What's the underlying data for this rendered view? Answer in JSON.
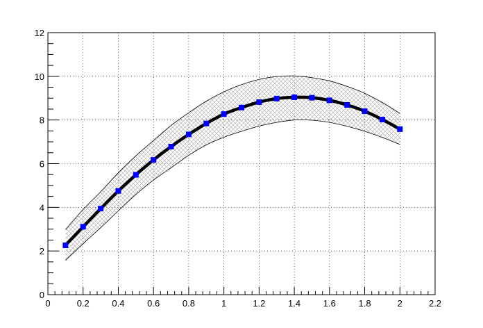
{
  "chart_data": {
    "type": "line",
    "title": "",
    "xlabel": "",
    "ylabel": "",
    "xlim": [
      0,
      2.2
    ],
    "ylim": [
      0,
      12
    ],
    "x_ticks": [
      0,
      0.2,
      0.4,
      0.6,
      0.8,
      1,
      1.2,
      1.4,
      1.6,
      1.8,
      2,
      2.2
    ],
    "x_tick_labels": [
      "0",
      "0.2",
      "0.4",
      "0.6",
      "0.8",
      "1",
      "1.2",
      "1.4",
      "1.6",
      "1.8",
      "2",
      "2.2"
    ],
    "y_ticks": [
      0,
      2,
      4,
      6,
      8,
      10,
      12
    ],
    "y_tick_labels": [
      "0",
      "2",
      "4",
      "6",
      "8",
      "10",
      "12"
    ],
    "grid": true,
    "grid_style": "dotted",
    "x": [
      0.1,
      0.2,
      0.3,
      0.4,
      0.5,
      0.6,
      0.7,
      0.8,
      0.9,
      1.0,
      1.1,
      1.2,
      1.3,
      1.4,
      1.5,
      1.6,
      1.7,
      1.8,
      1.9,
      2.0
    ],
    "series": [
      {
        "values": [
          2.26,
          3.11,
          3.94,
          4.75,
          5.49,
          6.17,
          6.78,
          7.34,
          7.84,
          8.27,
          8.57,
          8.82,
          8.98,
          9.04,
          9.02,
          8.9,
          8.69,
          8.4,
          8.02,
          7.58
        ],
        "band_upper": [
          2.98,
          3.9,
          4.71,
          5.58,
          6.36,
          7.06,
          7.75,
          8.33,
          8.86,
          9.29,
          9.62,
          9.86,
          9.99,
          10.02,
          9.94,
          9.79,
          9.54,
          9.22,
          8.8,
          8.3
        ],
        "band_lower": [
          1.57,
          2.33,
          3.07,
          3.84,
          4.59,
          5.25,
          5.81,
          6.38,
          6.86,
          7.21,
          7.48,
          7.72,
          7.89,
          8.0,
          7.99,
          7.89,
          7.71,
          7.48,
          7.2,
          6.88
        ],
        "line_color": "#000000",
        "marker_color": "#0000ff",
        "band_fill": "hatched",
        "band_color": "#aaaaaa"
      }
    ]
  }
}
